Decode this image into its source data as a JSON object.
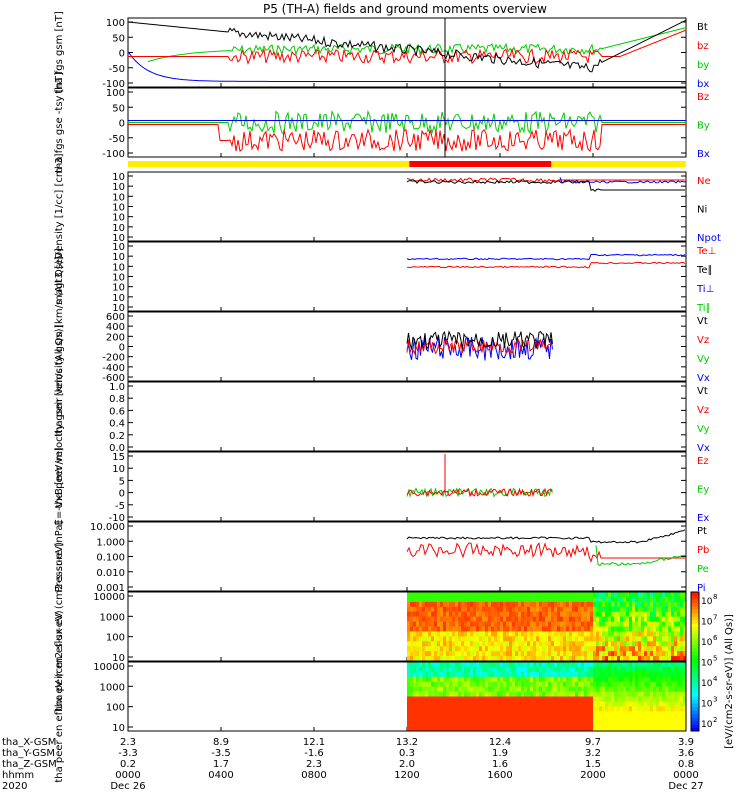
{
  "title": "P5 (TH-A) fields and ground moments overview",
  "x_axis": {
    "rows": [
      {
        "label": "tha_X-GSM",
        "values": [
          "2.3",
          "8.9",
          "12.1",
          "13.2",
          "12.4",
          "9.7",
          "3.9"
        ]
      },
      {
        "label": "tha_Y-GSM",
        "values": [
          "-3.3",
          "-3.5",
          "-1.6",
          "0.3",
          "1.9",
          "3.2",
          "3.6"
        ]
      },
      {
        "label": "tha_Z-GSM",
        "values": [
          "0.2",
          "1.7",
          "2.3",
          "2.0",
          "1.6",
          "1.5",
          "0.8"
        ]
      },
      {
        "label": "hhmm",
        "values": [
          "0000",
          "0400",
          "0800",
          "1200",
          "1600",
          "2000",
          "0000"
        ]
      }
    ],
    "year": "2020",
    "date_start": "Dec 26",
    "date_end": "Dec 27",
    "hours": [
      0,
      4,
      8,
      12,
      16,
      20,
      24
    ]
  },
  "colorbar_label": "[eV/(cm2-s-sr-eV)] (All Qs)]",
  "colorbar_ticks": [
    "10",
    "10",
    "10",
    "10",
    "10",
    "10",
    "10"
  ],
  "colorbar_exponents": [
    "8",
    "7",
    "6",
    "5",
    "4",
    "3",
    "2"
  ],
  "chart_data": [
    {
      "id": "fgs-gsm",
      "type": "line",
      "ylabel": "tha fgs gsm [nT]",
      "yticks": [
        "100",
        "50",
        "0",
        "-50",
        "-100"
      ],
      "ylim": [
        -100,
        100
      ],
      "series": [
        {
          "name": "Bt",
          "color": "#000000"
        },
        {
          "name": "bz",
          "color": "#ff0000"
        },
        {
          "name": "by",
          "color": "#00cc00"
        },
        {
          "name": "bx",
          "color": "#0000ff"
        }
      ]
    },
    {
      "id": "fgs-gse",
      "type": "line",
      "ylabel": "tha fgs gse -tsy [nT]",
      "yticks": [
        "100",
        "50",
        "0",
        "-50",
        "-100"
      ],
      "ylim": [
        -120,
        100
      ],
      "series": [
        {
          "name": "Bz",
          "color": "#ff0000"
        },
        {
          "name": "By",
          "color": "#00cc00"
        },
        {
          "name": "Bx",
          "color": "#0000ff"
        }
      ]
    },
    {
      "id": "density",
      "type": "line",
      "ylabel": "Density [1/cc] [cm-3]",
      "yticks": [
        "10",
        "10",
        "10",
        "10",
        "10",
        "10",
        "10"
      ],
      "series": [
        {
          "name": "Ne",
          "color": "#ff0000"
        },
        {
          "name": "Ni",
          "color": "#000000"
        },
        {
          "name": "Npot",
          "color": "#0000ff"
        }
      ]
    },
    {
      "id": "temperature",
      "type": "line",
      "ylabel": "magt3 [eV]",
      "yticks": [
        "10",
        "10",
        "10",
        "10",
        "10",
        "10",
        "10"
      ],
      "series": [
        {
          "name": "Te⊥",
          "color": "#ff0000"
        },
        {
          "name": "Te∥",
          "color": "#000000"
        },
        {
          "name": "Ti⊥",
          "color": "#0000ff"
        },
        {
          "name": "Ti∥",
          "color": "#00cc00"
        }
      ]
    },
    {
      "id": "peir-velocity",
      "type": "line",
      "ylabel": "tha peir velocity gsm [km/s (All Qs)]",
      "yticks": [
        "600",
        "400",
        "200",
        "0",
        "-200",
        "-400",
        "-600"
      ],
      "ylim": [
        -600,
        600
      ],
      "series": [
        {
          "name": "Vt",
          "color": "#000000"
        },
        {
          "name": "Vz",
          "color": "#ff0000"
        },
        {
          "name": "Vy",
          "color": "#00cc00"
        },
        {
          "name": "Vx",
          "color": "#0000ff"
        }
      ]
    },
    {
      "id": "peer-velocity",
      "type": "line",
      "ylabel": "tha peer velocity gsm [km/s (All Qs)]",
      "yticks": [
        "1.0",
        "0.8",
        "0.6",
        "0.4",
        "0.2",
        "0.0"
      ],
      "ylim": [
        0,
        1
      ],
      "series": [
        {
          "name": "Vt",
          "color": "#000000"
        },
        {
          "name": "Vz",
          "color": "#ff0000"
        },
        {
          "name": "Vy",
          "color": "#00cc00"
        },
        {
          "name": "Vx",
          "color": "#0000ff"
        }
      ]
    },
    {
      "id": "efield",
      "type": "line",
      "ylabel": "E=-VxB [mV/m]",
      "yticks": [
        "15",
        "10",
        "5",
        "0",
        "-5",
        "-10"
      ],
      "ylim": [
        -12,
        15
      ],
      "series": [
        {
          "name": "Ez",
          "color": "#ff0000"
        },
        {
          "name": "Ey",
          "color": "#00cc00"
        },
        {
          "name": "Ex",
          "color": "#0000ff"
        }
      ]
    },
    {
      "id": "pressure",
      "type": "line",
      "ylabel": "Pressure [nPa]",
      "yticks": [
        "10.000",
        "1.000",
        "0.100",
        "0.010",
        "0.001"
      ],
      "series": [
        {
          "name": "Pt",
          "color": "#000000"
        },
        {
          "name": "Pb",
          "color": "#ff0000"
        },
        {
          "name": "Pe",
          "color": "#00cc00"
        },
        {
          "name": "Pi",
          "color": "#0000ff"
        }
      ]
    },
    {
      "id": "peir-spectrogram",
      "type": "heatmap",
      "ylabel": "tha peir en eflux eV (cm2-s-sr-eV)",
      "yticks": [
        "10000",
        "1000",
        "100",
        "10"
      ]
    },
    {
      "id": "peer-spectrogram",
      "type": "heatmap",
      "ylabel": "tha peer en eflux eV (cm2-s-sr-eV)",
      "yticks": [
        "10000",
        "1000",
        "100",
        "10"
      ]
    }
  ]
}
